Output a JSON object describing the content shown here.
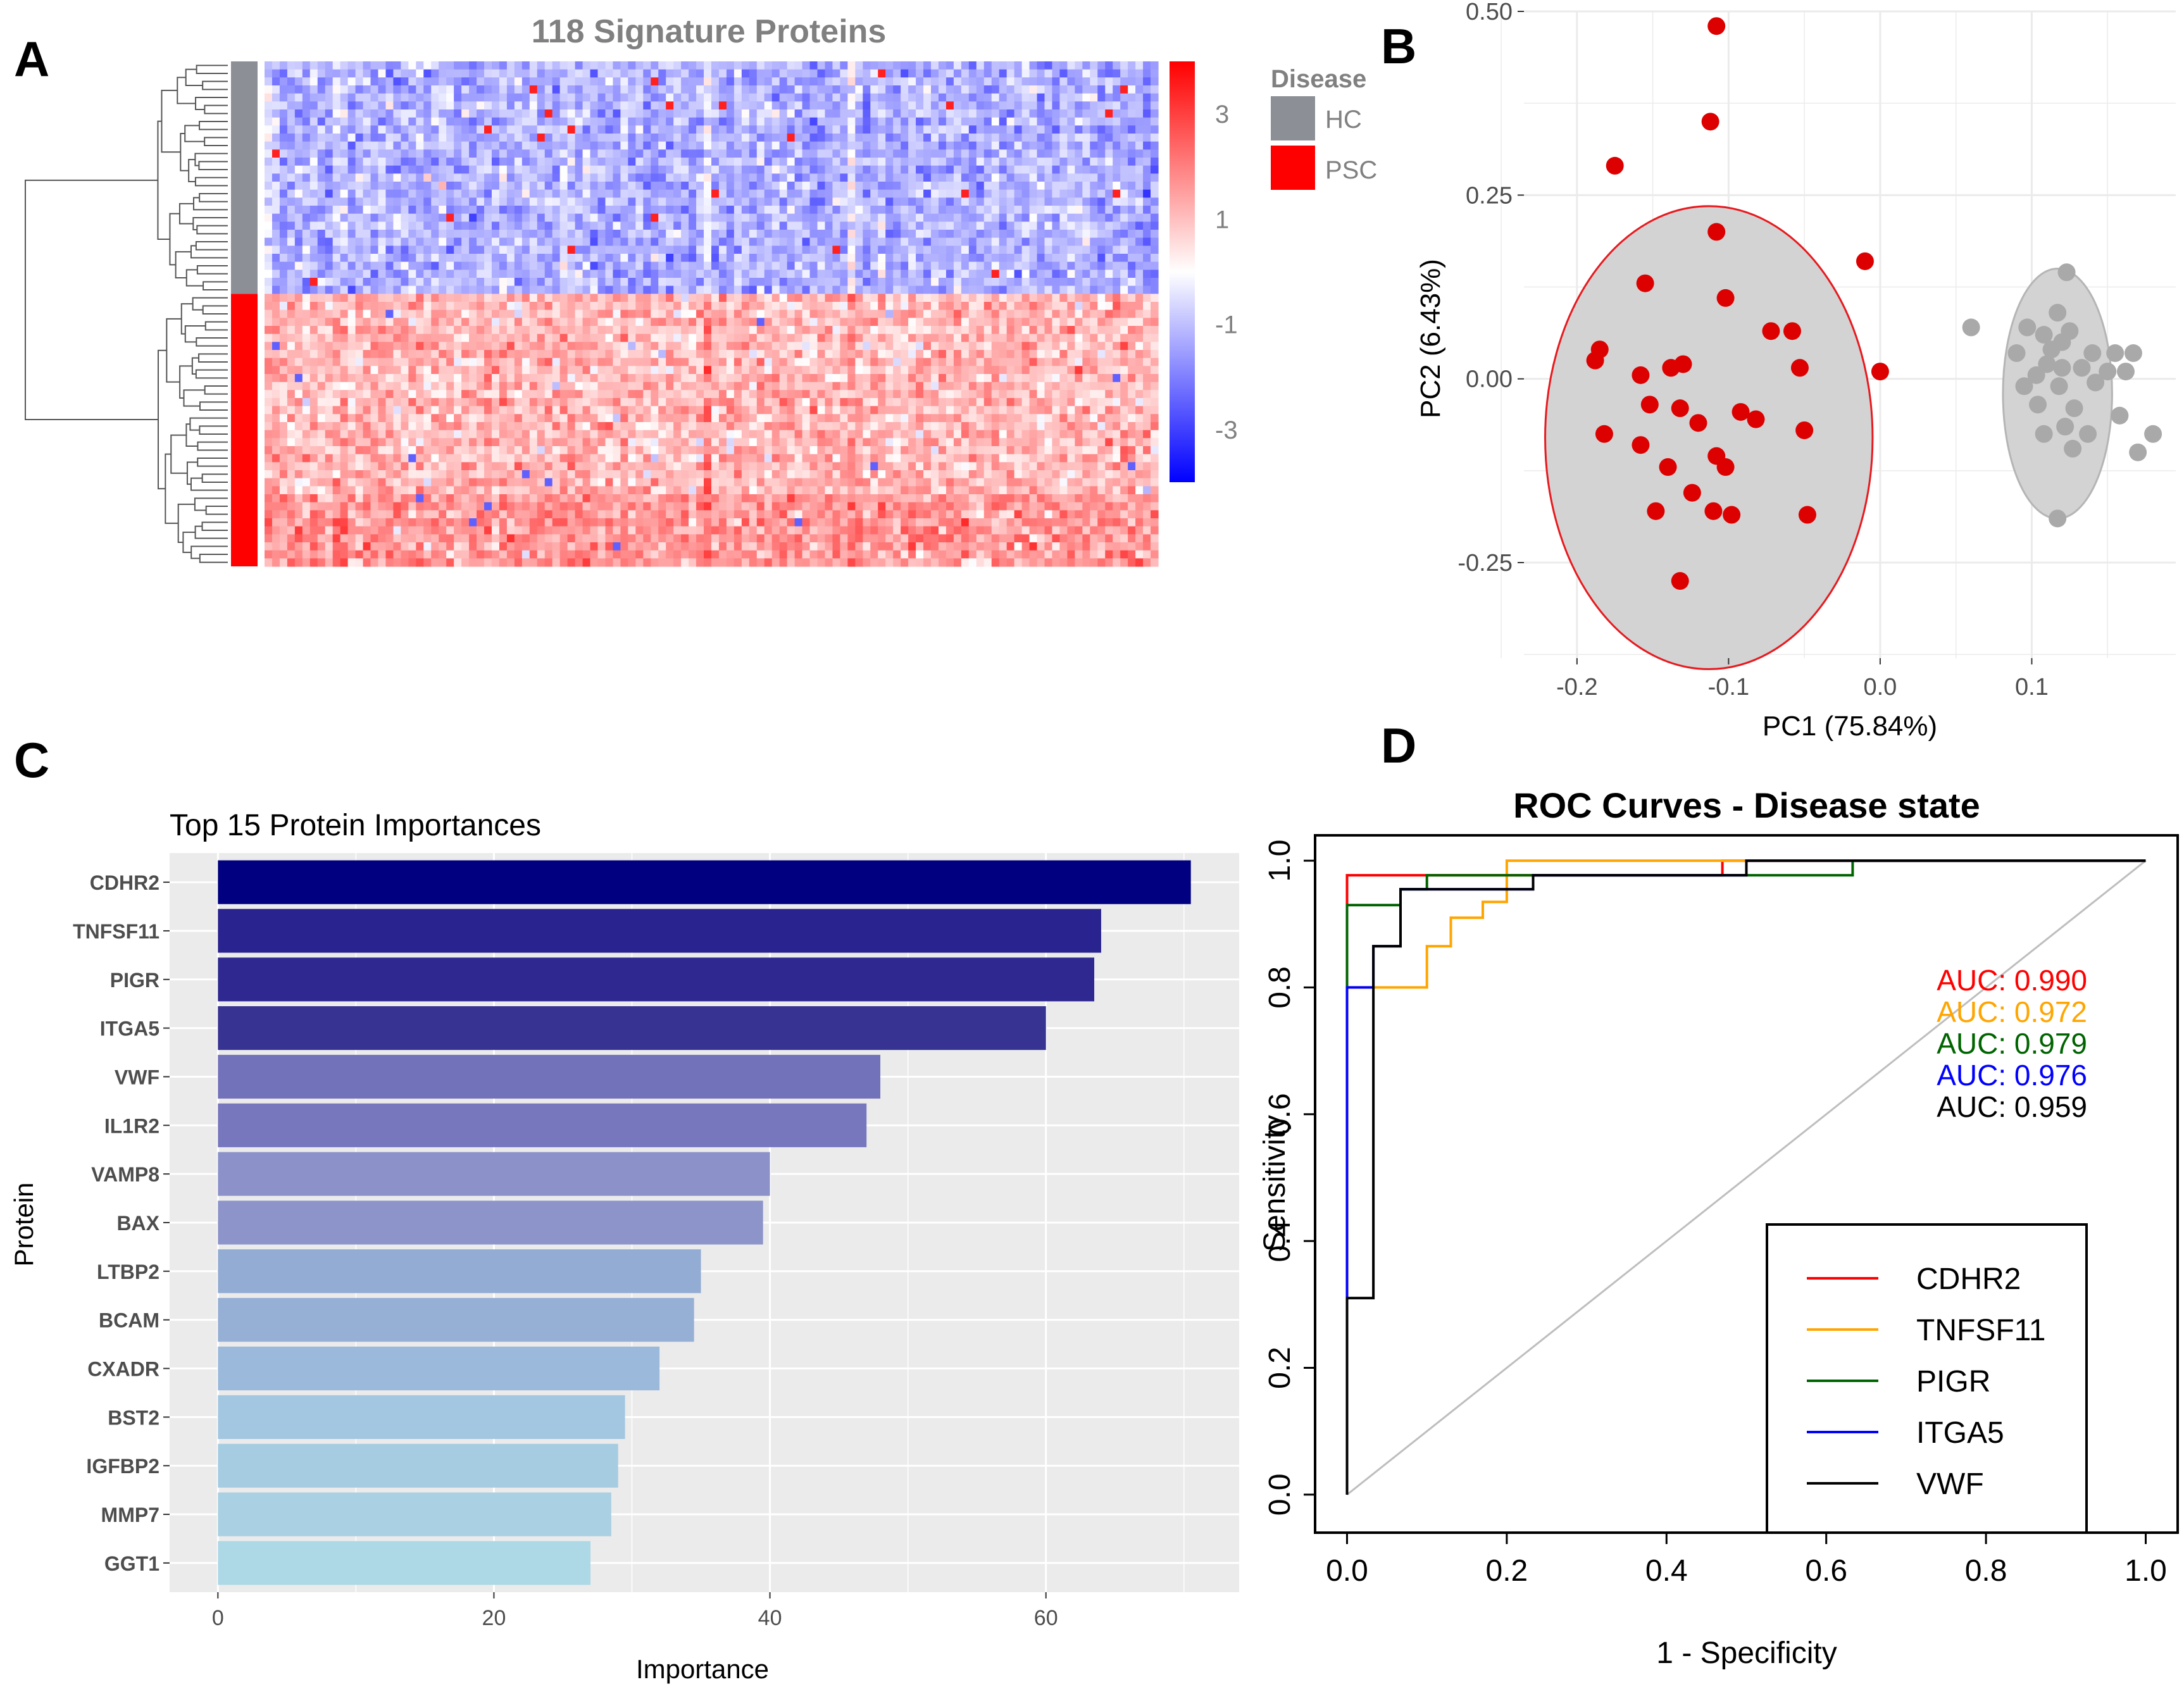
{
  "panel_labels": {
    "a": "A",
    "b": "B",
    "c": "C",
    "d": "D"
  },
  "chart_data": [
    {
      "panel": "A",
      "type": "heatmap",
      "title": "118 Signature Proteins",
      "legend_title": "Disease",
      "groups": [
        "HC",
        "PSC"
      ],
      "group_colors": {
        "HC": "#8c9096",
        "PSC": "#ff0000"
      },
      "colorbar_ticks": [
        3,
        1,
        -1,
        -3
      ],
      "colorbar_range": [
        -4,
        4
      ],
      "n_rows_hc": 29,
      "n_rows_psc": 34,
      "n_columns": 118,
      "hc_mean": -1.2,
      "psc_mean": 1.1,
      "colors": {
        "low": "#0000ff",
        "mid": "#ffffff",
        "high": "#ff0000"
      }
    },
    {
      "panel": "B",
      "type": "scatter",
      "xlabel": "PC1 (75.84%)",
      "ylabel": "PC2 (6.43%)",
      "xlim": [
        -0.235,
        0.195
      ],
      "ylim": [
        -0.38,
        0.5
      ],
      "x_ticks": [
        -0.2,
        -0.1,
        0.0,
        0.1
      ],
      "x_tick_labels": [
        "-0.2",
        "-0.1",
        "0.0",
        "0.1"
      ],
      "y_ticks": [
        -0.25,
        0.0,
        0.25,
        0.5
      ],
      "y_tick_labels": [
        "-0.25",
        "0.00",
        "0.25",
        "0.50"
      ],
      "series": [
        {
          "name": "PSC",
          "color": "#dd0000",
          "ellipse": {
            "cx": -0.113,
            "cy": -0.08,
            "rx": 0.108,
            "ry": 0.315,
            "fill": "#d3d3d3",
            "stroke": "#e8191e"
          },
          "points": [
            [
              -0.108,
              0.48
            ],
            [
              -0.112,
              0.35
            ],
            [
              -0.175,
              0.29
            ],
            [
              -0.108,
              0.2
            ],
            [
              -0.01,
              0.16
            ],
            [
              -0.155,
              0.13
            ],
            [
              -0.102,
              0.11
            ],
            [
              -0.072,
              0.065
            ],
            [
              -0.058,
              0.065
            ],
            [
              -0.185,
              0.04
            ],
            [
              -0.188,
              0.025
            ],
            [
              -0.13,
              0.02
            ],
            [
              -0.138,
              0.015
            ],
            [
              -0.053,
              0.015
            ],
            [
              -0.158,
              0.005
            ],
            [
              0.0,
              0.01
            ],
            [
              -0.152,
              -0.035
            ],
            [
              -0.132,
              -0.04
            ],
            [
              -0.092,
              -0.045
            ],
            [
              -0.082,
              -0.055
            ],
            [
              -0.12,
              -0.06
            ],
            [
              -0.182,
              -0.075
            ],
            [
              -0.05,
              -0.07
            ],
            [
              -0.158,
              -0.09
            ],
            [
              -0.108,
              -0.105
            ],
            [
              -0.102,
              -0.12
            ],
            [
              -0.14,
              -0.12
            ],
            [
              -0.124,
              -0.155
            ],
            [
              -0.148,
              -0.18
            ],
            [
              -0.11,
              -0.18
            ],
            [
              -0.098,
              -0.185
            ],
            [
              -0.048,
              -0.185
            ],
            [
              -0.132,
              -0.275
            ]
          ]
        },
        {
          "name": "HC",
          "color": "#a9a9a9",
          "ellipse": {
            "cx": 0.117,
            "cy": -0.02,
            "rx": 0.036,
            "ry": 0.17,
            "fill": "#d3d3d3",
            "stroke": "#b5b5b5"
          },
          "points": [
            [
              0.123,
              0.145
            ],
            [
              0.117,
              0.09
            ],
            [
              0.097,
              0.07
            ],
            [
              0.06,
              0.07
            ],
            [
              0.125,
              0.065
            ],
            [
              0.108,
              0.06
            ],
            [
              0.12,
              0.05
            ],
            [
              0.113,
              0.04
            ],
            [
              0.09,
              0.035
            ],
            [
              0.14,
              0.035
            ],
            [
              0.155,
              0.035
            ],
            [
              0.167,
              0.035
            ],
            [
              0.11,
              0.02
            ],
            [
              0.12,
              0.015
            ],
            [
              0.133,
              0.015
            ],
            [
              0.15,
              0.01
            ],
            [
              0.103,
              0.005
            ],
            [
              0.162,
              0.01
            ],
            [
              0.142,
              -0.005
            ],
            [
              0.095,
              -0.01
            ],
            [
              0.118,
              -0.01
            ],
            [
              0.104,
              -0.035
            ],
            [
              0.128,
              -0.04
            ],
            [
              0.158,
              -0.05
            ],
            [
              0.122,
              -0.065
            ],
            [
              0.108,
              -0.075
            ],
            [
              0.137,
              -0.075
            ],
            [
              0.18,
              -0.075
            ],
            [
              0.17,
              -0.1
            ],
            [
              0.127,
              -0.095
            ],
            [
              0.117,
              -0.19
            ]
          ]
        }
      ]
    },
    {
      "panel": "C",
      "type": "bar",
      "orientation": "horizontal",
      "title": "Top 15 Protein Importances",
      "xlabel": "Importance",
      "ylabel": "Protein",
      "xlim": [
        -3.5,
        74
      ],
      "x_ticks": [
        0,
        20,
        40,
        60
      ],
      "categories": [
        "CDHR2",
        "TNFSF11",
        "PIGR",
        "ITGA5",
        "VWF",
        "IL1R2",
        "VAMP8",
        "BAX",
        "LTBP2",
        "BCAM",
        "CXADR",
        "BST2",
        "IGFBP2",
        "MMP7",
        "GGT1"
      ],
      "values": [
        70.5,
        64.0,
        63.5,
        60.0,
        48.0,
        47.0,
        40.0,
        39.5,
        35.0,
        34.5,
        32.0,
        29.5,
        29.0,
        28.5,
        27.0
      ],
      "bar_colors": [
        "#000080",
        "#28238e",
        "#2f2890",
        "#363392",
        "#7272ba",
        "#7777bd",
        "#8c92c9",
        "#8d94c9",
        "#93acd3",
        "#96afd5",
        "#9bb9db",
        "#a3c7e1",
        "#a6cce2",
        "#a9d0e3",
        "#add8e6"
      ]
    },
    {
      "panel": "D",
      "type": "line",
      "title": "ROC Curves - Disease state",
      "xlabel": "1 - Specificity",
      "ylabel": "Sensitivity",
      "xlim": [
        -0.04,
        1.04
      ],
      "ylim": [
        -0.06,
        1.04
      ],
      "x_ticks": [
        0.0,
        0.2,
        0.4,
        0.6,
        0.8,
        1.0
      ],
      "x_tick_labels": [
        "0.0",
        "0.2",
        "0.4",
        "0.6",
        "0.8",
        "1.0"
      ],
      "y_ticks": [
        0.0,
        0.2,
        0.4,
        0.6,
        0.8,
        1.0
      ],
      "y_tick_labels": [
        "0.0",
        "0.2",
        "0.4",
        "0.6",
        "0.8",
        "1.0"
      ],
      "series": [
        {
          "name": "CDHR2",
          "color": "#ff0000",
          "auc": "AUC: 0.990",
          "x": [
            0,
            0,
            0,
            0.47,
            0.47,
            1.0
          ],
          "y": [
            0,
            0.8,
            0.977,
            0.977,
            1.0,
            1.0
          ]
        },
        {
          "name": "TNFSF11",
          "color": "#ffa500",
          "auc": "AUC: 0.972",
          "x": [
            0,
            0,
            0.1,
            0.1,
            0.13,
            0.13,
            0.17,
            0.17,
            0.2,
            0.2,
            0.5,
            0.5,
            1.0
          ],
          "y": [
            0,
            0.8,
            0.8,
            0.865,
            0.865,
            0.91,
            0.91,
            0.935,
            0.935,
            1.0,
            1.0,
            1.0,
            1.0
          ]
        },
        {
          "name": "PIGR",
          "color": "#006400",
          "auc": "AUC: 0.979",
          "x": [
            0,
            0,
            0.067,
            0.067,
            0.1,
            0.1,
            0.5,
            0.5,
            0.633,
            0.633,
            1.0
          ],
          "y": [
            0,
            0.93,
            0.93,
            0.955,
            0.955,
            0.977,
            0.977,
            0.977,
            0.977,
            1.0,
            1.0
          ]
        },
        {
          "name": "ITGA5",
          "color": "#0000ff",
          "auc": "AUC: 0.976",
          "x": [
            0,
            0,
            0.033,
            0.033,
            0.067,
            0.067,
            0.233,
            0.233,
            0.5,
            0.5,
            1.0
          ],
          "y": [
            0,
            0.8,
            0.8,
            0.865,
            0.865,
            0.955,
            0.955,
            0.977,
            0.977,
            1.0,
            1.0
          ]
        },
        {
          "name": "VWF",
          "color": "#000000",
          "auc": "AUC: 0.959",
          "x": [
            0,
            0,
            0.033,
            0.033,
            0.067,
            0.067,
            0.233,
            0.233,
            0.5,
            0.5,
            1.0
          ],
          "y": [
            0,
            0.31,
            0.31,
            0.865,
            0.865,
            0.955,
            0.955,
            0.977,
            0.977,
            1.0,
            1.0
          ]
        }
      ]
    }
  ]
}
